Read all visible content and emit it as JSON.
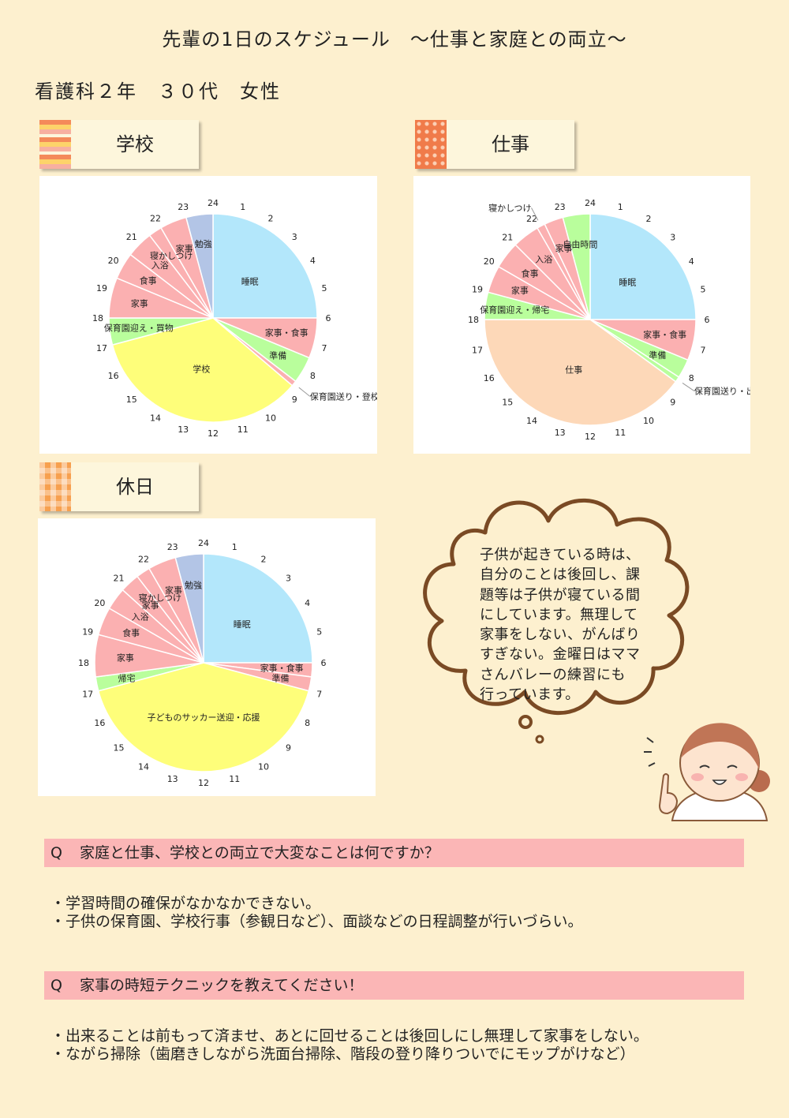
{
  "header": {
    "title": "先輩の1日のスケジュール　～仕事と家庭との両立～",
    "subtitle": "看護科２年　３０代　女性"
  },
  "sections": {
    "school_label": "学校",
    "work_label": "仕事",
    "holiday_label": "休日"
  },
  "colors": {
    "sleep": "#b3e7fb",
    "housework": "#fbb0b1",
    "study": "#b3c5e6",
    "school": "#fefe7a",
    "green": "#b9fe9c",
    "work": "#fdd8b8",
    "background": "#fdf0cf",
    "qbar": "#fbb6b6"
  },
  "chart_data": [
    {
      "type": "pie",
      "title": "学校",
      "unit": "hour",
      "start_hour": 0,
      "clock_labels": [
        "24",
        "1",
        "2",
        "3",
        "4",
        "5",
        "6",
        "7",
        "8",
        "9",
        "10",
        "11",
        "12",
        "13",
        "14",
        "15",
        "16",
        "17",
        "18",
        "19",
        "20",
        "21",
        "22",
        "23"
      ],
      "slices": [
        {
          "label": "睡眠",
          "start": 0,
          "end": 6,
          "color": "sleep"
        },
        {
          "label": "家事・食事",
          "start": 6,
          "end": 7.5,
          "color": "housework"
        },
        {
          "label": "準備",
          "start": 7.5,
          "end": 8.5,
          "color": "green"
        },
        {
          "label": "保育園送り・登校",
          "start": 8.5,
          "end": 8.7,
          "color": "housework"
        },
        {
          "label": "学校",
          "start": 8.7,
          "end": 17,
          "color": "school"
        },
        {
          "label": "保育園迎え・買物",
          "start": 17,
          "end": 18,
          "color": "green"
        },
        {
          "label": "家事",
          "start": 18,
          "end": 19.5,
          "color": "housework"
        },
        {
          "label": "食事",
          "start": 19.5,
          "end": 20.5,
          "color": "housework"
        },
        {
          "label": "入浴",
          "start": 20.5,
          "end": 21.5,
          "color": "housework"
        },
        {
          "label": "寝かしつけ",
          "start": 21.5,
          "end": 22,
          "color": "housework"
        },
        {
          "label": "家事",
          "start": 22,
          "end": 23,
          "color": "housework"
        },
        {
          "label": "勉強",
          "start": 23,
          "end": 24,
          "color": "study"
        }
      ]
    },
    {
      "type": "pie",
      "title": "仕事",
      "unit": "hour",
      "start_hour": 0,
      "clock_labels": [
        "24",
        "1",
        "2",
        "3",
        "4",
        "5",
        "6",
        "7",
        "8",
        "9",
        "10",
        "11",
        "12",
        "13",
        "14",
        "15",
        "16",
        "17",
        "18",
        "19",
        "20",
        "21",
        "22",
        "23"
      ],
      "slices": [
        {
          "label": "睡眠",
          "start": 0,
          "end": 6,
          "color": "sleep"
        },
        {
          "label": "家事・食事",
          "start": 6,
          "end": 7.5,
          "color": "housework"
        },
        {
          "label": "準備",
          "start": 7.5,
          "end": 8.2,
          "color": "green"
        },
        {
          "label": "保育園送り・出勤",
          "start": 8.2,
          "end": 8.4,
          "color": "green"
        },
        {
          "label": "仕事",
          "start": 8.4,
          "end": 18,
          "color": "work"
        },
        {
          "label": "保育園迎え・帰宅",
          "start": 18,
          "end": 19,
          "color": "green"
        },
        {
          "label": "家事",
          "start": 19,
          "end": 20,
          "color": "housework"
        },
        {
          "label": "食事",
          "start": 20,
          "end": 21,
          "color": "housework"
        },
        {
          "label": "入浴",
          "start": 21,
          "end": 22,
          "color": "housework"
        },
        {
          "label": "寝かしつけ",
          "start": 22,
          "end": 22.3,
          "color": "housework"
        },
        {
          "label": "家事",
          "start": 22.3,
          "end": 23,
          "color": "housework"
        },
        {
          "label": "自由時間",
          "start": 23,
          "end": 24,
          "color": "green"
        }
      ]
    },
    {
      "type": "pie",
      "title": "休日",
      "unit": "hour",
      "start_hour": 0,
      "clock_labels": [
        "24",
        "1",
        "2",
        "3",
        "4",
        "5",
        "6",
        "7",
        "8",
        "9",
        "10",
        "11",
        "12",
        "13",
        "14",
        "15",
        "16",
        "17",
        "18",
        "19",
        "20",
        "21",
        "22",
        "23"
      ],
      "slices": [
        {
          "label": "睡眠",
          "start": 0,
          "end": 6,
          "color": "sleep"
        },
        {
          "label": "家事・食事",
          "start": 6,
          "end": 6.5,
          "color": "housework"
        },
        {
          "label": "準備",
          "start": 6.5,
          "end": 7,
          "color": "housework"
        },
        {
          "label": "子どものサッカー送迎・応援",
          "start": 7,
          "end": 17,
          "color": "school"
        },
        {
          "label": "帰宅",
          "start": 17,
          "end": 17.5,
          "color": "green"
        },
        {
          "label": "家事",
          "start": 17.5,
          "end": 19,
          "color": "housework"
        },
        {
          "label": "食事",
          "start": 19,
          "end": 20,
          "color": "housework"
        },
        {
          "label": "入浴",
          "start": 20,
          "end": 20.8,
          "color": "housework"
        },
        {
          "label": "家事",
          "start": 20.8,
          "end": 21.5,
          "color": "housework"
        },
        {
          "label": "寝かしつけ",
          "start": 21.5,
          "end": 22,
          "color": "housework"
        },
        {
          "label": "家事",
          "start": 22,
          "end": 23,
          "color": "housework"
        },
        {
          "label": "勉強",
          "start": 23,
          "end": 24,
          "color": "study"
        }
      ]
    }
  ],
  "bubble": {
    "lines": [
      "子供が起きている時は、",
      "自分のことは後回し、課",
      "題等は子供が寝ている間",
      "にしています。無理して",
      "家事をしない、がんばり",
      "すぎない。金曜日はママ",
      "さんバレーの練習にも",
      "行っています。"
    ]
  },
  "qa": [
    {
      "q_mark": "Q",
      "question": "家庭と仕事、学校との両立で大変なことは何ですか？",
      "answers": [
        "・学習時間の確保がなかなかできない。",
        "・子供の保育園、学校行事（参観日など）、面談などの日程調整が行いづらい。"
      ]
    },
    {
      "q_mark": "Q",
      "question": "家事の時短テクニックを教えてください！",
      "answers": [
        "・出来ることは前もって済ませ、あとに回せることは後回しにし無理して家事をしない。",
        "・ながら掃除（歯磨きしながら洗面台掃除、階段の登り降りついでにモップがけなど）"
      ]
    }
  ]
}
